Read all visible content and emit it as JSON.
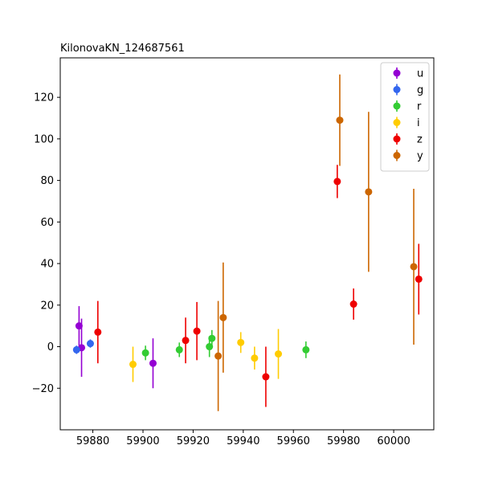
{
  "chart_data": {
    "type": "scatter",
    "title": "KilonovaKN_124687561",
    "xlabel": "",
    "ylabel": "",
    "xlim": [
      59867,
      60016
    ],
    "ylim": [
      -40,
      139
    ],
    "xticks": [
      59880,
      59900,
      59920,
      59940,
      59960,
      59980,
      60000
    ],
    "yticks": [
      -20,
      0,
      20,
      40,
      60,
      80,
      100,
      120
    ],
    "xtick_labels": [
      "59880",
      "59900",
      "59920",
      "59940",
      "59960",
      "59980",
      "60000"
    ],
    "ytick_labels": [
      "−20",
      "0",
      "20",
      "40",
      "60",
      "80",
      "100",
      "120"
    ],
    "legend_position": "top-right",
    "series": [
      {
        "name": "u",
        "color": "#9400d3",
        "points": [
          {
            "x": 59874.5,
            "y": 10.0,
            "err": 9.5
          },
          {
            "x": 59875.5,
            "y": -0.5,
            "err": 14.0
          },
          {
            "x": 59904.0,
            "y": -8.0,
            "err": 12.0
          }
        ]
      },
      {
        "name": "g",
        "color": "#3366ee",
        "points": [
          {
            "x": 59873.5,
            "y": -1.5,
            "err": 2.0
          },
          {
            "x": 59879.0,
            "y": 1.5,
            "err": 2.0
          }
        ]
      },
      {
        "name": "r",
        "color": "#33cc33",
        "points": [
          {
            "x": 59901.0,
            "y": -3.0,
            "err": 3.5
          },
          {
            "x": 59914.5,
            "y": -1.5,
            "err": 3.5
          },
          {
            "x": 59926.5,
            "y": 0.0,
            "err": 5.0
          },
          {
            "x": 59927.5,
            "y": 4.0,
            "err": 4.0
          },
          {
            "x": 59965.0,
            "y": -1.5,
            "err": 4.0
          }
        ]
      },
      {
        "name": "i",
        "color": "#ffcc00",
        "points": [
          {
            "x": 59896.0,
            "y": -8.5,
            "err": 8.5
          },
          {
            "x": 59939.0,
            "y": 2.0,
            "err": 5.0
          },
          {
            "x": 59944.5,
            "y": -5.5,
            "err": 5.5
          },
          {
            "x": 59954.0,
            "y": -3.5,
            "err": 12.0
          }
        ]
      },
      {
        "name": "z",
        "color": "#ee0000",
        "points": [
          {
            "x": 59882.0,
            "y": 7.0,
            "err": 15.0
          },
          {
            "x": 59917.0,
            "y": 3.0,
            "err": 11.0
          },
          {
            "x": 59921.5,
            "y": 7.5,
            "err": 14.0
          },
          {
            "x": 59949.0,
            "y": -14.5,
            "err": 14.5
          },
          {
            "x": 59977.5,
            "y": 79.5,
            "err": 8.0
          },
          {
            "x": 59984.0,
            "y": 20.5,
            "err": 7.5
          },
          {
            "x": 60010.0,
            "y": 32.5,
            "err": 17.0
          }
        ]
      },
      {
        "name": "y",
        "color": "#cc6600",
        "points": [
          {
            "x": 59930.0,
            "y": -4.5,
            "err": 26.5
          },
          {
            "x": 59932.0,
            "y": 14.0,
            "err": 26.5
          },
          {
            "x": 59978.5,
            "y": 109.0,
            "err": 22.0
          },
          {
            "x": 59990.0,
            "y": 74.5,
            "err": 38.5
          },
          {
            "x": 60008.0,
            "y": 38.5,
            "err": 37.5
          }
        ]
      }
    ]
  }
}
